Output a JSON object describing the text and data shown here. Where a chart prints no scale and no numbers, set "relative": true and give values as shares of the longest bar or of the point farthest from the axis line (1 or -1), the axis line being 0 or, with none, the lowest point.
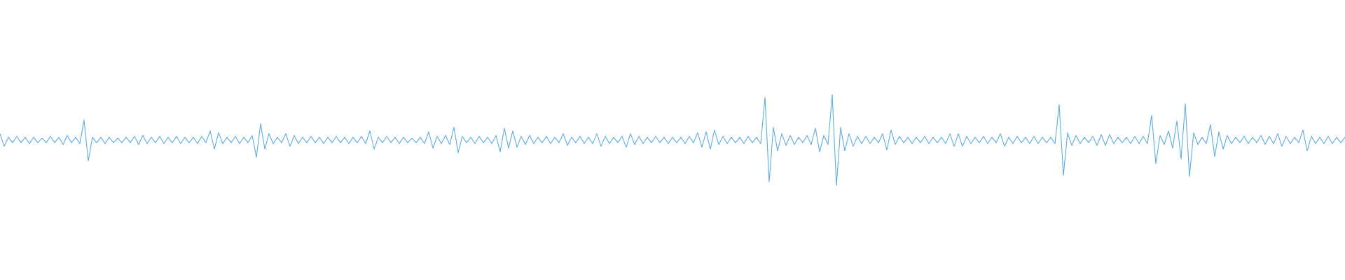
{
  "chart_data": {
    "type": "line",
    "relative": true,
    "color": "#5dade2",
    "categories": [
      null,
      null,
      null,
      null,
      null,
      null,
      null,
      null,
      null,
      null,
      null,
      null,
      null,
      null,
      null,
      null,
      null,
      null,
      null,
      null,
      null,
      null,
      null,
      null,
      null,
      null,
      null,
      null,
      null,
      null,
      null,
      null,
      null,
      null,
      null,
      null,
      null,
      null,
      null,
      null,
      null,
      null,
      null,
      null,
      null,
      null,
      null,
      null,
      null,
      null,
      null,
      null,
      null,
      null,
      null,
      null,
      null,
      null,
      null,
      null,
      null,
      null,
      null,
      null,
      null,
      null,
      null,
      null,
      null,
      null,
      null,
      null,
      null,
      null,
      null,
      null,
      null,
      null,
      null,
      null,
      null,
      null,
      null,
      null,
      null,
      null,
      null,
      null,
      null,
      null,
      null,
      null,
      null,
      null,
      null,
      null,
      null,
      null,
      null,
      null,
      null,
      null,
      null,
      null,
      null,
      null,
      null,
      null,
      null,
      null,
      null,
      null,
      null,
      null,
      null,
      null,
      null,
      null,
      null,
      null,
      null,
      null,
      null,
      null,
      null,
      null,
      null,
      null,
      null,
      null,
      null,
      null,
      null,
      null,
      null,
      null,
      null,
      null,
      null,
      null,
      null,
      null,
      null,
      null,
      null,
      null,
      null,
      null,
      null,
      null,
      null,
      null,
      null,
      null,
      null,
      null,
      null,
      null,
      null,
      null,
      null,
      null,
      null,
      null,
      null,
      null,
      null,
      null,
      null,
      null,
      null,
      null,
      null,
      null,
      null,
      null,
      null,
      null,
      null,
      null,
      null,
      null,
      null,
      null,
      null,
      null,
      null,
      null,
      null,
      null,
      null,
      null,
      null,
      null,
      null,
      null,
      null,
      null,
      null,
      null,
      null,
      null,
      null,
      null,
      null,
      null,
      null,
      null,
      null,
      null,
      null,
      null,
      null,
      null,
      null,
      null,
      null,
      null,
      null,
      null,
      null,
      null,
      null,
      null,
      null,
      null,
      null,
      null,
      null,
      null,
      null,
      null,
      null,
      null,
      null,
      null,
      null,
      null,
      null,
      null,
      null,
      null,
      null,
      null,
      null,
      null,
      null,
      null,
      null,
      null,
      null,
      null,
      null,
      null,
      null,
      null,
      null,
      null,
      null,
      null,
      null,
      null,
      null,
      null,
      null,
      null,
      null,
      null,
      null,
      null,
      null,
      null,
      null,
      null,
      null,
      null,
      null,
      null,
      null,
      null,
      null,
      null,
      null,
      null,
      null,
      null,
      null,
      null,
      null,
      null,
      null,
      null,
      null,
      null,
      null,
      null,
      null,
      null,
      null,
      null,
      null,
      null,
      null,
      null,
      null,
      null,
      null,
      null,
      null,
      null,
      null,
      null,
      null,
      null,
      null,
      null,
      null,
      null,
      null,
      null,
      null
    ],
    "values": [
      0.57,
      0.43,
      0.53,
      0.47,
      0.54,
      0.47,
      0.53,
      0.46,
      0.53,
      0.47,
      0.52,
      0.47,
      0.54,
      0.47,
      0.53,
      0.45,
      0.55,
      0.47,
      0.53,
      0.46,
      0.72,
      0.27,
      0.53,
      0.47,
      0.53,
      0.46,
      0.53,
      0.47,
      0.52,
      0.47,
      0.53,
      0.47,
      0.54,
      0.45,
      0.55,
      0.46,
      0.53,
      0.47,
      0.54,
      0.46,
      0.53,
      0.47,
      0.54,
      0.46,
      0.53,
      0.47,
      0.53,
      0.46,
      0.54,
      0.47,
      0.6,
      0.4,
      0.58,
      0.46,
      0.53,
      0.47,
      0.54,
      0.46,
      0.53,
      0.47,
      0.55,
      0.31,
      0.68,
      0.4,
      0.57,
      0.46,
      0.53,
      0.47,
      0.57,
      0.43,
      0.55,
      0.46,
      0.53,
      0.47,
      0.54,
      0.47,
      0.53,
      0.46,
      0.53,
      0.47,
      0.54,
      0.47,
      0.53,
      0.46,
      0.53,
      0.47,
      0.54,
      0.46,
      0.6,
      0.4,
      0.53,
      0.47,
      0.54,
      0.47,
      0.53,
      0.46,
      0.53,
      0.47,
      0.52,
      0.47,
      0.53,
      0.46,
      0.59,
      0.41,
      0.54,
      0.46,
      0.55,
      0.45,
      0.64,
      0.36,
      0.54,
      0.47,
      0.53,
      0.46,
      0.54,
      0.47,
      0.53,
      0.46,
      0.55,
      0.37,
      0.63,
      0.41,
      0.6,
      0.42,
      0.54,
      0.45,
      0.55,
      0.46,
      0.53,
      0.47,
      0.54,
      0.46,
      0.53,
      0.47,
      0.57,
      0.44,
      0.53,
      0.47,
      0.54,
      0.46,
      0.53,
      0.46,
      0.57,
      0.43,
      0.54,
      0.46,
      0.53,
      0.47,
      0.54,
      0.42,
      0.57,
      0.45,
      0.54,
      0.46,
      0.53,
      0.47,
      0.54,
      0.47,
      0.53,
      0.46,
      0.53,
      0.47,
      0.53,
      0.46,
      0.54,
      0.47,
      0.58,
      0.42,
      0.59,
      0.4,
      0.61,
      0.45,
      0.54,
      0.46,
      0.53,
      0.47,
      0.53,
      0.46,
      0.54,
      0.47,
      0.53,
      0.46,
      0.97,
      0.04,
      0.64,
      0.38,
      0.57,
      0.44,
      0.55,
      0.45,
      0.53,
      0.47,
      0.55,
      0.45,
      0.63,
      0.37,
      0.55,
      0.45,
      1,
      0,
      0.64,
      0.38,
      0.57,
      0.43,
      0.54,
      0.46,
      0.54,
      0.46,
      0.53,
      0.47,
      0.57,
      0.39,
      0.61,
      0.45,
      0.54,
      0.47,
      0.53,
      0.46,
      0.53,
      0.47,
      0.54,
      0.46,
      0.53,
      0.47,
      0.53,
      0.46,
      0.57,
      0.43,
      0.57,
      0.43,
      0.54,
      0.46,
      0.53,
      0.47,
      0.54,
      0.46,
      0.53,
      0.47,
      0.57,
      0.43,
      0.53,
      0.46,
      0.54,
      0.47,
      0.53,
      0.46,
      0.54,
      0.46,
      0.53,
      0.47,
      0.53,
      0.46,
      0.89,
      0.11,
      0.58,
      0.44,
      0.55,
      0.46,
      0.53,
      0.47,
      0.54,
      0.44,
      0.56,
      0.44,
      0.56,
      0.46,
      0.53,
      0.47,
      0.53,
      0.46,
      0.54,
      0.46,
      0.54,
      0.46,
      0.77,
      0.24,
      0.55,
      0.45,
      0.6,
      0.41,
      0.71,
      0.29,
      0.9,
      0.1,
      0.58,
      0.45,
      0.53,
      0.46,
      0.67,
      0.32,
      0.59,
      0.4,
      0.55,
      0.46,
      0.53,
      0.47,
      0.54,
      0.46,
      0.53,
      0.47,
      0.55,
      0.45,
      0.54,
      0.46,
      0.57,
      0.43,
      0.54,
      0.46,
      0.53,
      0.47,
      0.61,
      0.38,
      0.54,
      0.46,
      0.53,
      0.46,
      0.54,
      0.46,
      0.53,
      0.47,
      0.53
    ]
  }
}
